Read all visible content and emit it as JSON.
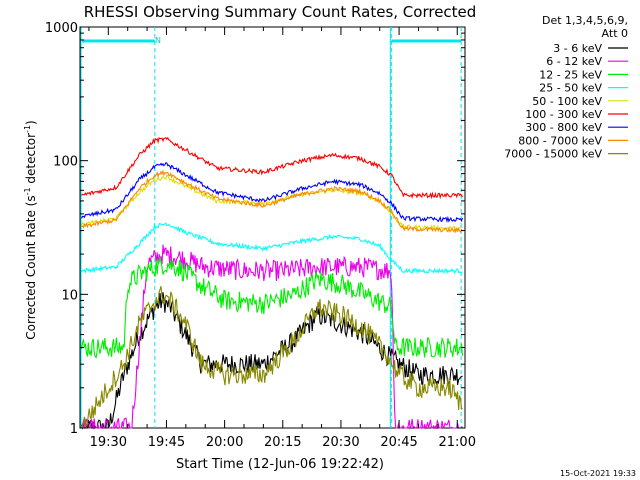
{
  "chart_data": {
    "type": "line",
    "title": "RHESSI Observing Summary Count Rates, Corrected",
    "xlabel": "Start Time (12-Jun-06 19:22:42)",
    "ylabel_main": "Corrected Count Rate (s",
    "ylabel_sup1": "-1",
    "ylabel_mid": " detector",
    "ylabel_sup2": "-1",
    "ylabel_end": ")",
    "y_scale": "log",
    "ylim": [
      1,
      1000
    ],
    "xlim_minutes": [
      "19:22:42",
      "21:02:00"
    ],
    "y_ticks": [
      "1000",
      "100",
      "10",
      "1"
    ],
    "x_ticks": [
      "19:30",
      "19:45",
      "20:00",
      "20:15",
      "20:30",
      "20:45",
      "21:00"
    ],
    "x_tick_minutes": [
      1170,
      1185,
      1200,
      1215,
      1230,
      1245,
      1260
    ],
    "legend_header": [
      "Det 1,3,4,5,6,9,",
      "Att 0"
    ],
    "timestamp": "15-Oct-2021 19:33",
    "night_markers": [
      "19:42",
      "20:43",
      "21:01"
    ],
    "annotation": "N",
    "series": [
      {
        "name": "3 - 6 keV",
        "color": "#000000",
        "x": [
          "19:23",
          "19:30",
          "19:34",
          "19:38",
          "19:42",
          "19:44",
          "19:46",
          "19:50",
          "19:54",
          "20:00",
          "20:10",
          "20:18",
          "20:24",
          "20:30",
          "20:36",
          "20:42",
          "20:45",
          "20:50",
          "20:58",
          "21:01"
        ],
        "values": [
          1,
          1,
          2.5,
          5,
          8,
          9,
          8,
          5,
          3,
          3,
          3,
          4.5,
          7,
          6,
          5,
          3.5,
          3,
          2.5,
          2.5,
          2.5
        ]
      },
      {
        "name": "6 - 12 keV",
        "color": "#ee00ee",
        "x": [
          "19:23",
          "19:36",
          "19:40",
          "19:44",
          "19:48",
          "19:55",
          "20:05",
          "20:15",
          "20:25",
          "20:35",
          "20:43",
          "20:44",
          "20:50",
          "21:01"
        ],
        "values": [
          1,
          1,
          17,
          20,
          19,
          16,
          15,
          15,
          16,
          16,
          15,
          1,
          1,
          1
        ]
      },
      {
        "name": "12 - 25 keV",
        "color": "#00ee00",
        "x": [
          "19:23",
          "19:34",
          "19:35",
          "19:38",
          "19:42",
          "19:45",
          "19:48",
          "19:55",
          "20:00",
          "20:10",
          "20:18",
          "20:24",
          "20:30",
          "20:36",
          "20:43",
          "20:44",
          "21:01"
        ],
        "values": [
          4,
          4,
          12,
          14,
          16,
          17,
          16,
          11,
          9,
          8.5,
          10,
          13,
          12,
          10,
          8,
          4,
          4
        ]
      },
      {
        "name": "25 - 50 keV",
        "color": "#00ffff",
        "x": [
          "19:23",
          "19:32",
          "19:38",
          "19:42",
          "19:45",
          "19:50",
          "19:58",
          "20:10",
          "20:20",
          "20:28",
          "20:35",
          "20:40",
          "20:43",
          "20:46",
          "21:01"
        ],
        "values": [
          15,
          16,
          24,
          32,
          34,
          29,
          24,
          22,
          25,
          27,
          26,
          23,
          18,
          15,
          15
        ]
      },
      {
        "name": "50 - 100 keV",
        "color": "#dddd00",
        "x": [
          "19:23",
          "19:32",
          "19:38",
          "19:42",
          "19:45",
          "19:50",
          "19:58",
          "20:10",
          "20:20",
          "20:28",
          "20:35",
          "20:40",
          "20:43",
          "20:46",
          "21:01"
        ],
        "values": [
          33,
          37,
          58,
          72,
          76,
          64,
          50,
          48,
          56,
          60,
          57,
          50,
          40,
          32,
          31
        ]
      },
      {
        "name": "100 - 300 keV",
        "color": "#ff0000",
        "x": [
          "19:23",
          "19:32",
          "19:38",
          "19:42",
          "19:45",
          "19:50",
          "19:58",
          "20:10",
          "20:20",
          "20:28",
          "20:35",
          "20:40",
          "20:43",
          "20:46",
          "21:01"
        ],
        "values": [
          55,
          63,
          110,
          142,
          145,
          120,
          88,
          82,
          100,
          110,
          104,
          90,
          78,
          55,
          55
        ]
      },
      {
        "name": "300 - 800 keV",
        "color": "#0000ff",
        "x": [
          "19:23",
          "19:32",
          "19:38",
          "19:42",
          "19:45",
          "19:50",
          "19:58",
          "20:10",
          "20:20",
          "20:28",
          "20:35",
          "20:40",
          "20:43",
          "20:46",
          "21:01"
        ],
        "values": [
          38,
          43,
          72,
          90,
          94,
          78,
          58,
          50,
          62,
          70,
          66,
          57,
          48,
          37,
          36
        ]
      },
      {
        "name": "800 - 7000 keV",
        "color": "#ff8800",
        "x": [
          "19:23",
          "19:32",
          "19:38",
          "19:42",
          "19:45",
          "19:50",
          "19:58",
          "20:10",
          "20:20",
          "20:28",
          "20:35",
          "20:40",
          "20:43",
          "20:46",
          "21:01"
        ],
        "values": [
          32,
          36,
          62,
          78,
          82,
          68,
          52,
          46,
          56,
          62,
          59,
          50,
          42,
          31,
          30
        ]
      },
      {
        "name": "7000 - 15000 keV",
        "color": "#888800",
        "x": [
          "19:23",
          "19:30",
          "19:34",
          "19:38",
          "19:42",
          "19:44",
          "19:46",
          "19:50",
          "19:54",
          "20:00",
          "20:10",
          "20:18",
          "20:24",
          "20:30",
          "20:36",
          "20:42",
          "20:45",
          "20:50",
          "20:58",
          "21:01"
        ],
        "values": [
          1,
          2,
          3,
          6,
          9,
          10,
          9,
          6,
          3,
          2.5,
          2.5,
          4.5,
          8,
          7,
          5.5,
          3.5,
          2.5,
          2,
          2,
          1.5
        ]
      }
    ]
  }
}
